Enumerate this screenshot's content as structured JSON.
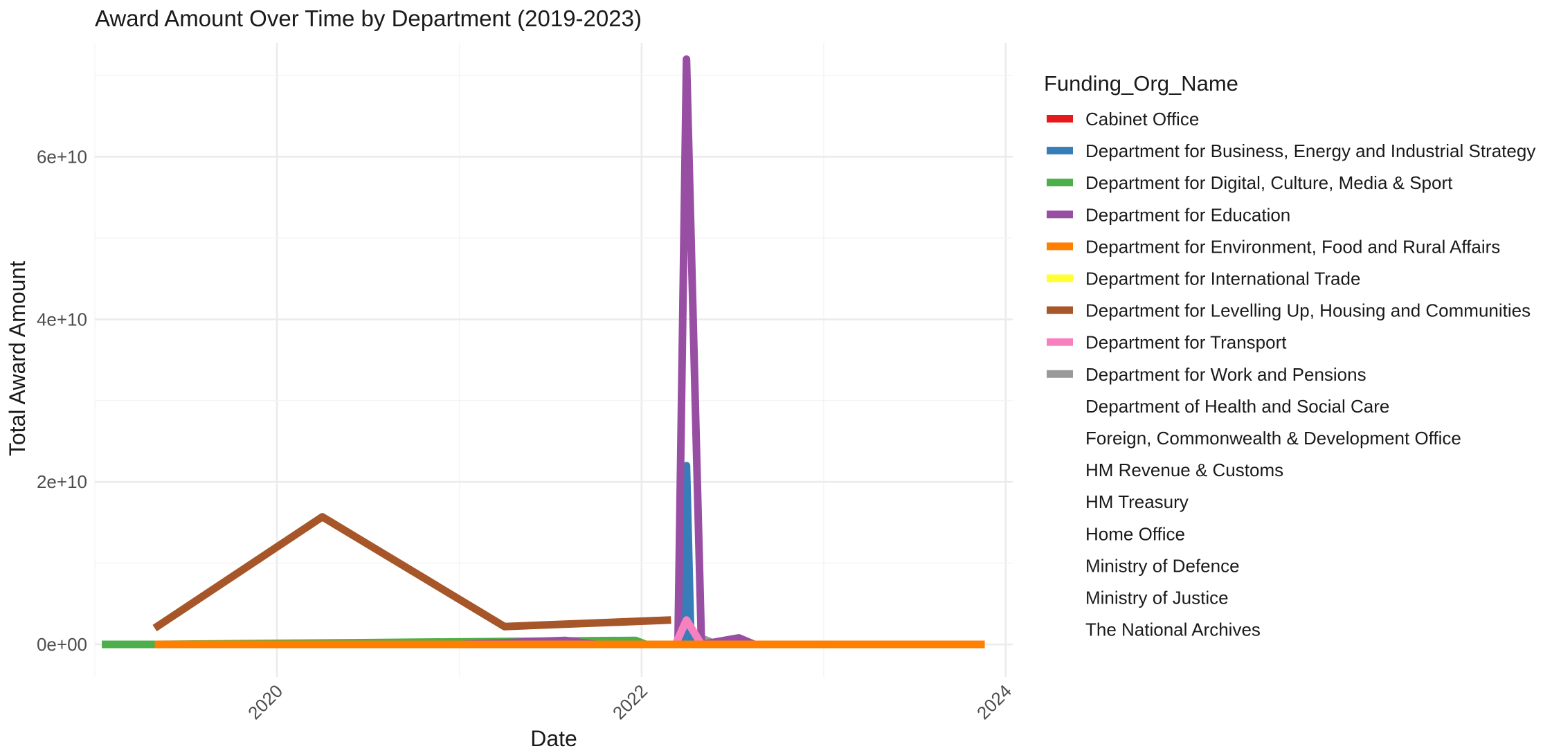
{
  "chart_data": {
    "type": "line",
    "title": "Award Amount Over Time by Department (2019-2023)",
    "xlabel": "Date",
    "ylabel": "Total Award Amount",
    "xlim": [
      "2019-01-01",
      "2024-01-15"
    ],
    "ylim": [
      -4000000000,
      74000000000
    ],
    "x_ticks": [
      {
        "value": "2020-01-01",
        "label": "2020"
      },
      {
        "value": "2022-01-01",
        "label": "2022"
      },
      {
        "value": "2024-01-01",
        "label": "2024"
      }
    ],
    "y_ticks": [
      {
        "value": 0,
        "label": "0e+00"
      },
      {
        "value": 20000000000,
        "label": "2e+10"
      },
      {
        "value": 40000000000,
        "label": "4e+10"
      },
      {
        "value": 60000000000,
        "label": "6e+10"
      }
    ],
    "grid": true,
    "legend": {
      "title": "Funding_Org_Name",
      "placement": "right",
      "entries": [
        {
          "name": "Cabinet Office",
          "color": "#E41A1C"
        },
        {
          "name": "Department for Business, Energy and Industrial Strategy",
          "color": "#377EB8"
        },
        {
          "name": "Department for Digital, Culture, Media & Sport",
          "color": "#4DAF4A"
        },
        {
          "name": "Department for Education",
          "color": "#984EA3"
        },
        {
          "name": "Department for Environment, Food and Rural Affairs",
          "color": "#FF7F00"
        },
        {
          "name": "Department for International Trade",
          "color": "#FFFF33"
        },
        {
          "name": "Department for Levelling Up, Housing and Communities",
          "color": "#A65628"
        },
        {
          "name": "Department for Transport",
          "color": "#F781BF"
        },
        {
          "name": "Department for Work and Pensions",
          "color": "#999999"
        },
        {
          "name": "Department of Health and Social Care",
          "color": null
        },
        {
          "name": "Foreign, Commonwealth & Development Office",
          "color": null
        },
        {
          "name": "HM Revenue & Customs",
          "color": null
        },
        {
          "name": "HM Treasury",
          "color": null
        },
        {
          "name": "Home Office",
          "color": null
        },
        {
          "name": "Ministry of Defence",
          "color": null
        },
        {
          "name": "Ministry of Justice",
          "color": null
        },
        {
          "name": "The National Archives",
          "color": null
        }
      ]
    },
    "series": [
      {
        "name": "Department for Digital, Culture, Media & Sport",
        "color": "#4DAF4A",
        "points": [
          [
            "2019-01-15",
            0
          ],
          [
            "2019-05-01",
            0
          ],
          [
            "2021-12-20",
            500000000
          ],
          [
            "2022-01-10",
            0
          ]
        ]
      },
      {
        "name": "Department for International Trade",
        "color": "#FFFF33",
        "points": [
          [
            "2020-03-15",
            0
          ],
          [
            "2020-11-01",
            0
          ]
        ]
      },
      {
        "name": "Cabinet Office",
        "color": "#E41A1C",
        "points": [
          [
            "2022-03-10",
            0
          ],
          [
            "2022-04-01",
            200000000
          ],
          [
            "2022-06-01",
            0
          ]
        ]
      },
      {
        "name": "Department for Work and Pensions",
        "color": "#999999",
        "points": [
          [
            "2020-11-01",
            0
          ],
          [
            "2022-03-15",
            0
          ],
          [
            "2022-04-01",
            1500000000
          ],
          [
            "2022-06-01",
            0
          ],
          [
            "2023-02-01",
            0
          ]
        ]
      },
      {
        "name": "Department for Business, Energy and Industrial Strategy",
        "color": "#377EB8",
        "points": [
          [
            "2022-03-25",
            0
          ],
          [
            "2022-04-01",
            22000000000
          ],
          [
            "2022-04-10",
            0
          ]
        ]
      },
      {
        "name": "Department for Education",
        "color": "#984EA3",
        "points": [
          [
            "2021-01-01",
            0
          ],
          [
            "2021-08-01",
            500000000
          ],
          [
            "2021-10-01",
            0
          ],
          [
            "2022-03-15",
            0
          ],
          [
            "2022-04-01",
            72000000000
          ],
          [
            "2022-05-01",
            0
          ],
          [
            "2022-07-15",
            800000000
          ],
          [
            "2022-08-15",
            0
          ]
        ]
      },
      {
        "name": "Department for Levelling Up, Housing and Communities",
        "color": "#A65628",
        "points": [
          [
            "2019-05-01",
            2000000000
          ],
          [
            "2020-04-01",
            15700000000
          ],
          [
            "2021-04-01",
            2200000000
          ],
          [
            "2022-03-01",
            3000000000
          ]
        ]
      },
      {
        "name": "Department for Transport",
        "color": "#F781BF",
        "points": [
          [
            "2022-03-10",
            0
          ],
          [
            "2022-04-01",
            3000000000
          ],
          [
            "2022-05-01",
            0
          ],
          [
            "2023-02-01",
            0
          ],
          [
            "2023-03-15",
            0
          ]
        ]
      },
      {
        "name": "Department for Environment, Food and Rural Affairs",
        "color": "#FF7F00",
        "points": [
          [
            "2019-05-01",
            0
          ],
          [
            "2020-03-15",
            0
          ],
          [
            "2023-03-15",
            0
          ],
          [
            "2023-11-20",
            0
          ]
        ]
      }
    ]
  }
}
